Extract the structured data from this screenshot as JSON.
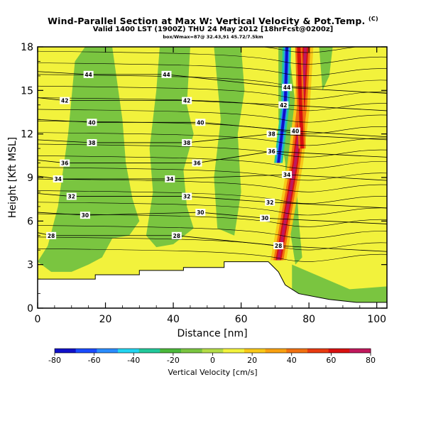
{
  "header": {
    "title": "Wind-Parallel Section at Max W: Vertical Velocity & Pot.Temp.",
    "title_mark": "(C)",
    "valid_line": "Valid 1400 LST (1900Z) THU 24 May 2012 [18hrFcst@0200z]",
    "location_line": "box/Wmax=87@ 32.43,91 45.72/7.5km"
  },
  "colors": {
    "scale": [
      "#1010c8",
      "#1a4bff",
      "#2a8cff",
      "#22d4f0",
      "#22c89a",
      "#4ab83a",
      "#7ac540",
      "#b4dc46",
      "#f2f23c",
      "#f8c818",
      "#f8a010",
      "#f07010",
      "#e83a10",
      "#d81010",
      "#c0185c"
    ],
    "terrain": "#ffffff",
    "contour": "#000000"
  },
  "chart_data": {
    "type": "heatmap",
    "title": "Wind-Parallel Section at Max W: Vertical Velocity & Pot.Temp.",
    "xlabel": "Distance [nm]",
    "ylabel": "Height [Kft MSL]",
    "xlim": [
      0,
      103
    ],
    "ylim": [
      0,
      18
    ],
    "xticks": [
      0,
      20,
      40,
      60,
      80,
      100
    ],
    "yticks": [
      0,
      3,
      6,
      9,
      12,
      15,
      18
    ],
    "colorbar": {
      "label": "Vertical Velocity [cm/s]",
      "ticks": [
        -80,
        -60,
        -40,
        -20,
        0,
        20,
        40,
        60,
        80
      ],
      "range": [
        -80,
        80
      ]
    },
    "background_value": 10,
    "updraft_value": 70,
    "downdraft_value": -75,
    "terrain": [
      [
        0,
        2.0
      ],
      [
        17,
        2.0
      ],
      [
        17,
        2.3
      ],
      [
        30,
        2.3
      ],
      [
        30,
        2.6
      ],
      [
        43,
        2.6
      ],
      [
        43,
        2.8
      ],
      [
        55,
        2.8
      ],
      [
        55,
        3.2
      ],
      [
        68,
        3.2
      ],
      [
        71,
        2.5
      ],
      [
        73,
        1.6
      ],
      [
        77,
        1.0
      ],
      [
        86,
        0.6
      ],
      [
        94,
        0.4
      ],
      [
        103,
        0.4
      ]
    ],
    "contour_labels": [
      {
        "x": 15,
        "y": 16.1,
        "text": "44"
      },
      {
        "x": 38,
        "y": 16.1,
        "text": "44"
      },
      {
        "x": 73.5,
        "y": 15.2,
        "text": "44"
      },
      {
        "x": 8,
        "y": 14.3,
        "text": "42"
      },
      {
        "x": 44,
        "y": 14.3,
        "text": "42"
      },
      {
        "x": 72.5,
        "y": 14.0,
        "text": "42"
      },
      {
        "x": 16,
        "y": 12.8,
        "text": "40"
      },
      {
        "x": 48,
        "y": 12.8,
        "text": "40"
      },
      {
        "x": 76,
        "y": 12.2,
        "text": "40"
      },
      {
        "x": 16,
        "y": 11.4,
        "text": "38"
      },
      {
        "x": 44,
        "y": 11.4,
        "text": "38"
      },
      {
        "x": 69,
        "y": 12.0,
        "text": "38"
      },
      {
        "x": 8,
        "y": 10.0,
        "text": "36"
      },
      {
        "x": 47,
        "y": 10.0,
        "text": "36"
      },
      {
        "x": 69,
        "y": 10.8,
        "text": "36"
      },
      {
        "x": 6,
        "y": 8.9,
        "text": "34"
      },
      {
        "x": 39,
        "y": 8.9,
        "text": "34"
      },
      {
        "x": 73.5,
        "y": 9.2,
        "text": "34"
      },
      {
        "x": 10,
        "y": 7.7,
        "text": "32"
      },
      {
        "x": 44,
        "y": 7.7,
        "text": "32"
      },
      {
        "x": 68.5,
        "y": 7.3,
        "text": "32"
      },
      {
        "x": 14,
        "y": 6.4,
        "text": "30"
      },
      {
        "x": 48,
        "y": 6.6,
        "text": "30"
      },
      {
        "x": 67,
        "y": 6.2,
        "text": "30"
      },
      {
        "x": 4,
        "y": 5.0,
        "text": "28"
      },
      {
        "x": 41,
        "y": 5.0,
        "text": "28"
      },
      {
        "x": 71,
        "y": 4.3,
        "text": "28"
      }
    ]
  }
}
